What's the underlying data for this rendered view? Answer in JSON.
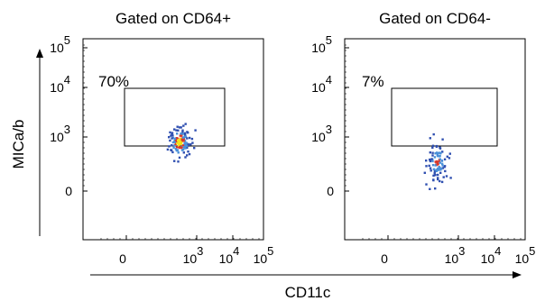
{
  "figure": {
    "y_axis_label": "MICa/b",
    "x_axis_label": "CD11c"
  },
  "colors": {
    "dot_low": "#2f4fb0",
    "dot_mid": "#4a90d9",
    "dot_high": "#d9382b",
    "dot_peak": "#f2e21c",
    "axis": "#000000"
  },
  "chart_data": [
    {
      "type": "scatter",
      "title": "Gated on CD64+",
      "xlabel": "CD11c",
      "ylabel": "MICa/b",
      "x_scale": "biexponential",
      "y_scale": "biexponential",
      "x_ticks": [
        "0",
        "10^3",
        "10^4",
        "10^5"
      ],
      "y_ticks": [
        "0",
        "10^3",
        "10^4",
        "10^5"
      ],
      "gate": {
        "x_range": [
          "10^2",
          "10^4.1"
        ],
        "y_range": [
          "10^2.8",
          "10^4.2"
        ],
        "percent_label": "70%"
      },
      "population": {
        "center_x_decade": 2.6,
        "center_y_decade": 2.95,
        "density": "high"
      }
    },
    {
      "type": "scatter",
      "title": "Gated on CD64-",
      "xlabel": "CD11c",
      "ylabel": "MICa/b",
      "x_scale": "biexponential",
      "y_scale": "biexponential",
      "x_ticks": [
        "0",
        "10^3",
        "10^4",
        "10^5"
      ],
      "y_ticks": [
        "0",
        "10^3",
        "10^4",
        "10^5"
      ],
      "gate": {
        "x_range": [
          "10^2",
          "10^4.1"
        ],
        "y_range": [
          "10^2.8",
          "10^4.2"
        ],
        "percent_label": "7%"
      },
      "population": {
        "center_x_decade": 2.6,
        "center_y_decade": 2.4,
        "density": "low"
      }
    }
  ]
}
